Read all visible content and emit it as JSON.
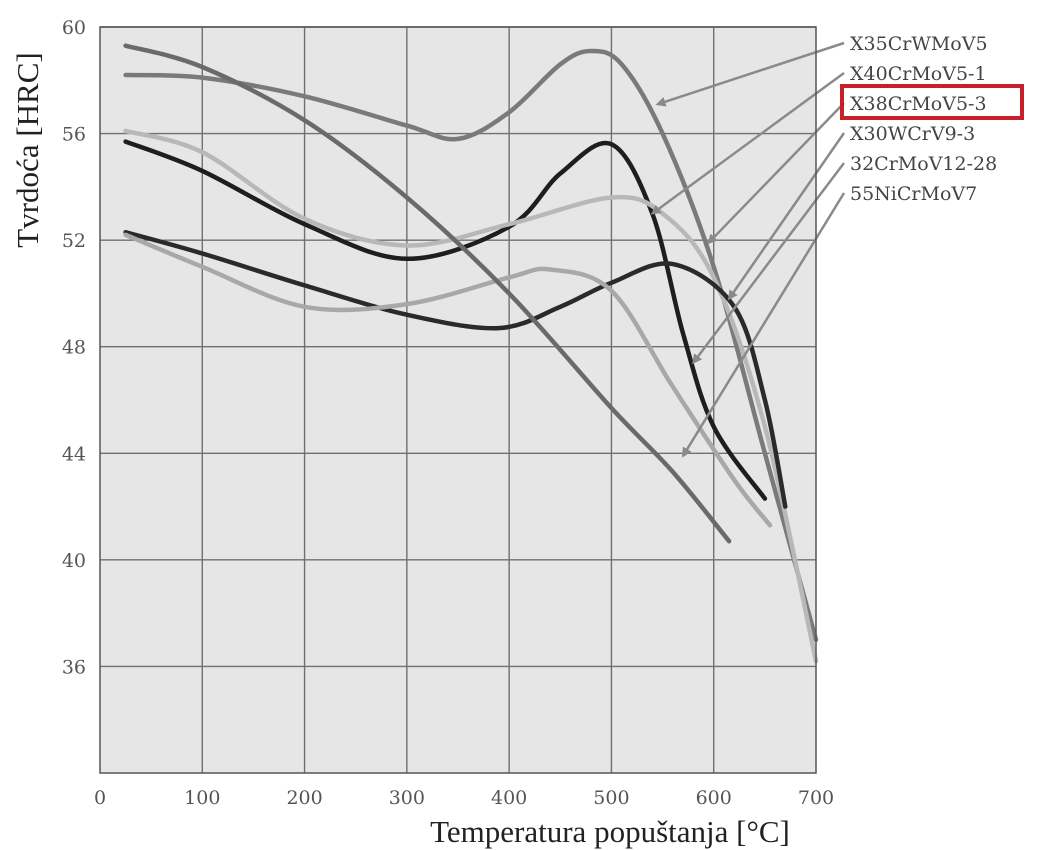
{
  "chart_data": {
    "type": "line",
    "xlabel": "Temperatura popuštanja [°C]",
    "ylabel": "Tvrdoća [HRC]",
    "xlim": [
      0,
      700
    ],
    "ylim": [
      32,
      60
    ],
    "x_ticks": [
      0,
      100,
      200,
      300,
      400,
      500,
      600,
      700
    ],
    "y_ticks": [
      36,
      40,
      44,
      48,
      52,
      56,
      60
    ],
    "grid": true,
    "legend_position": "right",
    "highlighted_series": "X38CrMoV5-3",
    "series": [
      {
        "name": "X35CrWMoV5",
        "color": "#7a7a7a",
        "points": [
          [
            25,
            58.2
          ],
          [
            100,
            58.1
          ],
          [
            200,
            57.4
          ],
          [
            300,
            56.3
          ],
          [
            350,
            55.8
          ],
          [
            400,
            56.8
          ],
          [
            450,
            58.6
          ],
          [
            480,
            59.1
          ],
          [
            510,
            58.6
          ],
          [
            550,
            56.0
          ],
          [
            600,
            51.0
          ],
          [
            650,
            44.0
          ],
          [
            700,
            37.0
          ]
        ]
      },
      {
        "name": "X40CrMoV5-1",
        "color": "#1e1e1e",
        "points": [
          [
            25,
            55.7
          ],
          [
            100,
            54.6
          ],
          [
            200,
            52.6
          ],
          [
            300,
            51.3
          ],
          [
            400,
            52.5
          ],
          [
            450,
            54.5
          ],
          [
            500,
            55.6
          ],
          [
            540,
            53.0
          ],
          [
            570,
            48.5
          ],
          [
            600,
            45.0
          ],
          [
            650,
            42.3
          ]
        ]
      },
      {
        "name": "X38CrMoV5-3",
        "color": "#b8b8b8",
        "points": [
          [
            25,
            56.1
          ],
          [
            100,
            55.3
          ],
          [
            200,
            52.8
          ],
          [
            300,
            51.8
          ],
          [
            400,
            52.6
          ],
          [
            500,
            53.6
          ],
          [
            550,
            53.0
          ],
          [
            600,
            50.6
          ],
          [
            650,
            45.0
          ],
          [
            700,
            36.2
          ]
        ]
      },
      {
        "name": "X30WCrV9-3",
        "color": "#2a2a2a",
        "points": [
          [
            25,
            52.3
          ],
          [
            100,
            51.5
          ],
          [
            200,
            50.3
          ],
          [
            300,
            49.2
          ],
          [
            390,
            48.7
          ],
          [
            450,
            49.5
          ],
          [
            500,
            50.4
          ],
          [
            560,
            51.1
          ],
          [
            620,
            49.5
          ],
          [
            650,
            46.0
          ],
          [
            670,
            42.0
          ]
        ]
      },
      {
        "name": "32CrMoV12-28",
        "color": "#a8a8a8",
        "points": [
          [
            25,
            52.2
          ],
          [
            100,
            51.0
          ],
          [
            200,
            49.5
          ],
          [
            300,
            49.6
          ],
          [
            400,
            50.6
          ],
          [
            440,
            50.9
          ],
          [
            500,
            50.1
          ],
          [
            560,
            46.5
          ],
          [
            620,
            43.0
          ],
          [
            655,
            41.3
          ]
        ]
      },
      {
        "name": "55NiCrMoV7",
        "color": "#6a6a6a",
        "points": [
          [
            25,
            59.3
          ],
          [
            100,
            58.5
          ],
          [
            200,
            56.5
          ],
          [
            300,
            53.6
          ],
          [
            400,
            50.0
          ],
          [
            500,
            45.7
          ],
          [
            560,
            43.3
          ],
          [
            615,
            40.7
          ]
        ]
      }
    ]
  },
  "legend": {
    "items": [
      {
        "label": "X35CrWMoV5",
        "highlighted": false
      },
      {
        "label": "X40CrMoV5-1",
        "highlighted": false
      },
      {
        "label": "X38CrMoV5-3",
        "highlighted": true
      },
      {
        "label": "X30WCrV9-3",
        "highlighted": false
      },
      {
        "label": "32CrMoV12-28",
        "highlighted": false
      },
      {
        "label": "55NiCrMoV7",
        "highlighted": false
      }
    ],
    "highlight_color": "#c8202a",
    "arrow_targets": [
      {
        "series": "X35CrWMoV5",
        "x": 545,
        "y": 57.1
      },
      {
        "series": "X40CrMoV5-1",
        "x": 540,
        "y": 53.0
      },
      {
        "series": "X38CrMoV5-3",
        "x": 595,
        "y": 51.9
      },
      {
        "series": "X30WCrV9-3",
        "x": 615,
        "y": 49.8
      },
      {
        "series": "32CrMoV12-28",
        "x": 580,
        "y": 47.4
      },
      {
        "series": "55NiCrMoV7",
        "x": 570,
        "y": 43.9
      }
    ]
  },
  "colors": {
    "plot_background": "#e6e6e6",
    "grid": "#707070"
  }
}
